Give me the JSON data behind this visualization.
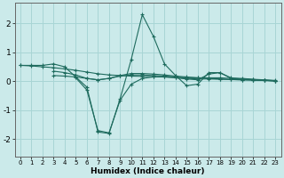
{
  "bg_color": "#cbeaea",
  "grid_color": "#a8d5d5",
  "line_color": "#1e6b5e",
  "xlabel": "Humidex (Indice chaleur)",
  "xlim": [
    -0.5,
    23.5
  ],
  "ylim": [
    -2.6,
    2.7
  ],
  "yticks": [
    -2,
    -1,
    0,
    1,
    2
  ],
  "figsize": [
    3.2,
    2.0
  ],
  "dpi": 100,
  "series": [
    {
      "x": [
        0,
        1,
        2,
        3,
        4,
        5,
        6,
        7,
        8,
        9,
        10,
        11,
        12,
        13,
        14,
        15,
        16,
        17,
        18,
        19,
        20,
        21,
        22,
        23
      ],
      "y": [
        0.55,
        0.55,
        0.55,
        0.6,
        0.5,
        0.15,
        -0.2,
        -1.75,
        -1.8,
        -0.6,
        0.75,
        2.3,
        1.55,
        0.6,
        0.2,
        -0.15,
        -0.1,
        0.3,
        0.3,
        0.1,
        0.1,
        0.07,
        0.05,
        0.03
      ]
    },
    {
      "x": [
        0,
        1,
        2,
        3,
        4,
        5,
        6,
        7,
        8,
        9,
        10,
        11,
        12,
        13,
        14,
        15,
        16,
        17,
        18,
        19,
        20,
        21,
        22,
        23
      ],
      "y": [
        0.55,
        0.53,
        0.5,
        0.47,
        0.43,
        0.38,
        0.32,
        0.26,
        0.22,
        0.2,
        0.18,
        0.17,
        0.16,
        0.15,
        0.14,
        0.13,
        0.12,
        0.12,
        0.12,
        0.1,
        0.08,
        0.06,
        0.04,
        0.02
      ]
    },
    {
      "x": [
        3,
        4,
        5,
        6,
        7,
        8,
        9,
        10,
        11,
        12,
        13,
        14,
        15,
        16,
        17,
        18,
        19,
        20,
        21,
        22,
        23
      ],
      "y": [
        0.2,
        0.18,
        0.15,
        0.1,
        0.05,
        0.1,
        0.18,
        0.22,
        0.22,
        0.2,
        0.18,
        0.15,
        0.1,
        0.08,
        0.08,
        0.07,
        0.06,
        0.05,
        0.04,
        0.03,
        0.02
      ]
    },
    {
      "x": [
        3,
        4,
        5,
        6,
        7,
        8,
        9,
        10,
        11,
        12,
        13,
        14,
        15,
        16,
        17,
        18,
        19,
        20,
        21,
        22,
        23
      ],
      "y": [
        0.35,
        0.3,
        0.22,
        0.1,
        0.05,
        0.1,
        0.2,
        0.27,
        0.27,
        0.25,
        0.22,
        0.18,
        0.15,
        0.12,
        0.1,
        0.08,
        0.06,
        0.05,
        0.04,
        0.03,
        0.01
      ]
    },
    {
      "x": [
        5,
        6,
        7,
        8,
        9,
        10,
        11,
        12,
        13,
        14,
        15,
        16,
        17,
        18,
        19,
        20,
        21,
        22,
        23
      ],
      "y": [
        0.12,
        -0.3,
        -1.7,
        -1.78,
        -0.65,
        -0.1,
        0.1,
        0.15,
        0.15,
        0.12,
        0.08,
        0.05,
        0.25,
        0.3,
        0.12,
        0.08,
        0.05,
        0.03,
        0.01
      ]
    }
  ]
}
